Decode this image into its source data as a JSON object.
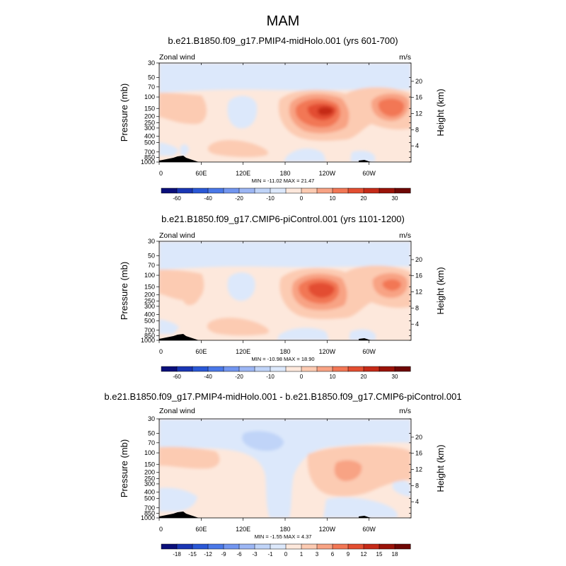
{
  "figure_title": "MAM",
  "palette": {
    "levels_ref": [
      "-60",
      "-50",
      "-40",
      "-30",
      "-20",
      "-15",
      "-10",
      "-5",
      "0",
      "5",
      "10",
      "15",
      "20",
      "25",
      "30"
    ],
    "levels_diff": [
      "-18",
      "-15",
      "-12",
      "-9",
      "-6",
      "-3",
      "-1",
      "0",
      "1",
      "3",
      "6",
      "9",
      "12",
      "15",
      "18"
    ],
    "colors": [
      "#0a0f7a",
      "#1a36b4",
      "#2a58d6",
      "#4a78e8",
      "#7296f0",
      "#9cb6f4",
      "#c0d4f8",
      "#dce8fb",
      "#fde8dc",
      "#fccbb2",
      "#f8a384",
      "#f27755",
      "#e34e31",
      "#c52a18",
      "#9a1309",
      "#6e0705"
    ]
  },
  "chart_data": [
    {
      "type": "heatmap",
      "title": "b.e21.B1850.f09_g17.PMIP4-midHolo.001 (yrs 601-700)",
      "left_label": "Zonal wind",
      "right_label": "m/s",
      "ylabel": "Pressure (mb)",
      "y2label": "Height (km)",
      "x_ticks": [
        "0",
        "60E",
        "120E",
        "180",
        "120W",
        "60W"
      ],
      "x_tick_lon": [
        0,
        60,
        120,
        180,
        240,
        300
      ],
      "xlim": [
        0,
        360
      ],
      "y_ticks": [
        "30",
        "50",
        "70",
        "100",
        "150",
        "200",
        "250",
        "300",
        "400",
        "500",
        "700",
        "850",
        "1000"
      ],
      "y_tick_values": [
        30,
        50,
        70,
        100,
        150,
        200,
        250,
        300,
        400,
        500,
        700,
        850,
        1000
      ],
      "y2_ticks": [
        "4",
        "8",
        "12",
        "16",
        "20"
      ],
      "y2_tick_km": [
        4,
        8,
        12,
        16,
        20
      ],
      "ylim": [
        1000,
        30
      ],
      "yscale": "log",
      "min_max": "MIN = -11.02   MAX =  21.47",
      "colorbar_labels": [
        "-60",
        "-40",
        "-20",
        "-10",
        "0",
        "10",
        "20",
        "30"
      ],
      "colorbar_label_levels": [
        -60,
        -40,
        -20,
        -10,
        0,
        10,
        20,
        30
      ],
      "features": [
        {
          "kind": "jet",
          "lon": 228,
          "p": 160,
          "peak": 21.47
        },
        {
          "kind": "jet",
          "lon": 330,
          "p": 150,
          "peak": 13
        },
        {
          "kind": "min",
          "value": -11.02
        }
      ]
    },
    {
      "type": "heatmap",
      "title": "b.e21.B1850.f09_g17.CMIP6-piControl.001 (yrs 1101-1200)",
      "left_label": "Zonal wind",
      "right_label": "m/s",
      "ylabel": "Pressure (mb)",
      "y2label": "Height (km)",
      "x_ticks": [
        "0",
        "60E",
        "120E",
        "180",
        "120W",
        "60W"
      ],
      "x_tick_lon": [
        0,
        60,
        120,
        180,
        240,
        300
      ],
      "xlim": [
        0,
        360
      ],
      "y_ticks": [
        "30",
        "50",
        "70",
        "100",
        "150",
        "200",
        "250",
        "300",
        "400",
        "500",
        "700",
        "850",
        "1000"
      ],
      "y_tick_values": [
        30,
        50,
        70,
        100,
        150,
        200,
        250,
        300,
        400,
        500,
        700,
        850,
        1000
      ],
      "y2_ticks": [
        "4",
        "8",
        "12",
        "16",
        "20"
      ],
      "y2_tick_km": [
        4,
        8,
        12,
        16,
        20
      ],
      "ylim": [
        1000,
        30
      ],
      "yscale": "log",
      "min_max": "MIN = -10.98   MAX =  18.90",
      "colorbar_labels": [
        "-60",
        "-40",
        "-20",
        "-10",
        "0",
        "10",
        "20",
        "30"
      ],
      "colorbar_label_levels": [
        -60,
        -40,
        -20,
        -10,
        0,
        10,
        20,
        30
      ],
      "features": [
        {
          "kind": "jet",
          "lon": 225,
          "p": 155,
          "peak": 18.9
        },
        {
          "kind": "jet",
          "lon": 335,
          "p": 150,
          "peak": 12
        },
        {
          "kind": "min",
          "value": -10.98
        }
      ]
    },
    {
      "type": "heatmap",
      "title": "b.e21.B1850.f09_g17.PMIP4-midHolo.001 - b.e21.B1850.f09_g17.CMIP6-piControl.001",
      "left_label": "Zonal wind",
      "right_label": "m/s",
      "ylabel": "Pressure (mb)",
      "y2label": "Height (km)",
      "x_ticks": [
        "0",
        "60E",
        "120E",
        "180",
        "120W",
        "60W"
      ],
      "x_tick_lon": [
        0,
        60,
        120,
        180,
        240,
        300
      ],
      "xlim": [
        0,
        360
      ],
      "y_ticks": [
        "30",
        "50",
        "70",
        "100",
        "150",
        "200",
        "250",
        "300",
        "400",
        "500",
        "700",
        "850",
        "1000"
      ],
      "y_tick_values": [
        30,
        50,
        70,
        100,
        150,
        200,
        250,
        300,
        400,
        500,
        700,
        850,
        1000
      ],
      "y2_ticks": [
        "4",
        "8",
        "12",
        "16",
        "20"
      ],
      "y2_tick_km": [
        4,
        8,
        12,
        16,
        20
      ],
      "ylim": [
        1000,
        30
      ],
      "yscale": "log",
      "min_max": "MIN =  -1.55   MAX =   4.37",
      "colorbar_labels": [
        "-18",
        "-15",
        "-12",
        "-9",
        "-6",
        "-3",
        "-1",
        "0",
        "1",
        "3",
        "6",
        "9",
        "12",
        "15",
        "18"
      ],
      "colorbar_label_levels": [
        -18,
        -15,
        -12,
        -9,
        -6,
        -3,
        -1,
        0,
        1,
        3,
        6,
        9,
        12,
        15,
        18
      ],
      "features": [
        {
          "kind": "max",
          "lon": 245,
          "p": 180,
          "peak": 4.37
        },
        {
          "kind": "min",
          "lon": 170,
          "p": 70,
          "value": -1.55
        }
      ]
    }
  ]
}
